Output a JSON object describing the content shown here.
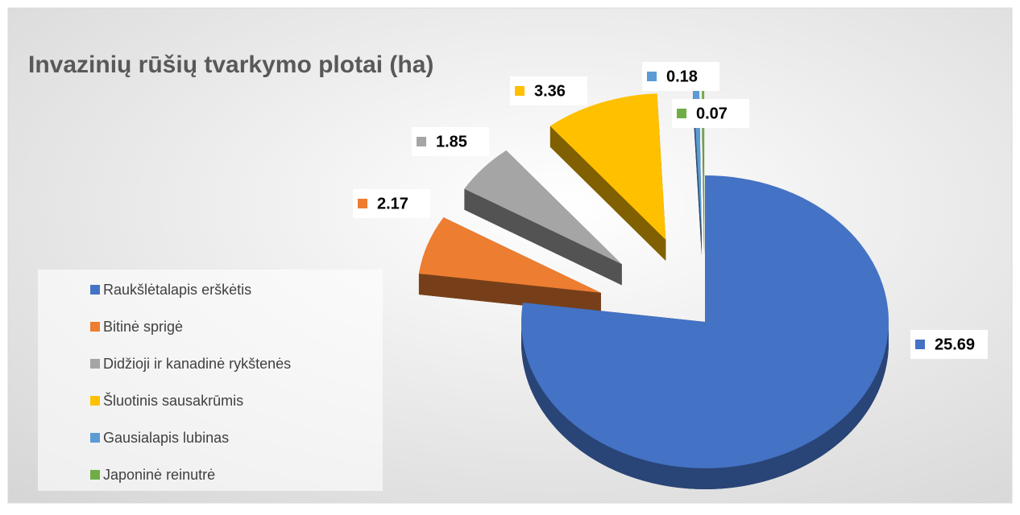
{
  "chart_data": {
    "type": "pie",
    "title": "Invazinių rūšių tvarkymo plotai (ha)",
    "categories": [
      "Raukšlėtalapis erškėtis",
      "Bitinė sprigė",
      "Didžioji ir kanadinė rykštenės",
      "Šluotinis sausakrūmis",
      "Gausialapis lubinas",
      "Japoninė reinutrė"
    ],
    "values": [
      25.69,
      2.17,
      1.85,
      3.36,
      0.18,
      0.07
    ],
    "colors": [
      "#4472c4",
      "#ed7d31",
      "#a5a5a5",
      "#ffc000",
      "#5b9bd5",
      "#70ad47"
    ],
    "legend": "left"
  }
}
